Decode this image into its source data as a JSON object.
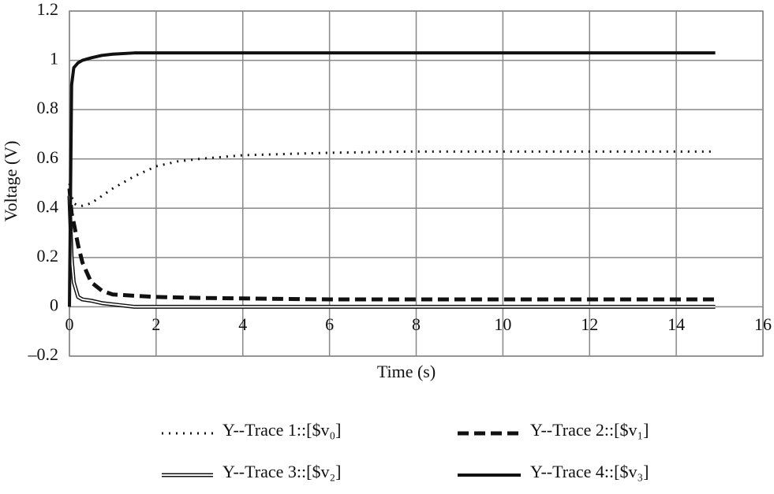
{
  "chart_data": {
    "type": "line",
    "x_label": "Time (s)",
    "y_label": "Voltage (V)",
    "x": [
      0,
      0.05,
      0.1,
      0.2,
      0.3,
      0.5,
      0.75,
      1,
      1.5,
      2,
      2.5,
      3,
      4,
      5,
      6,
      8,
      10,
      12,
      14,
      14.9
    ],
    "series": [
      {
        "name": "Y--Trace 1::[$v₀]",
        "color": "#111111",
        "style": "dotted",
        "values": [
          0.5,
          0.45,
          0.42,
          0.41,
          0.41,
          0.42,
          0.45,
          0.48,
          0.53,
          0.57,
          0.59,
          0.6,
          0.615,
          0.62,
          0.625,
          0.63,
          0.63,
          0.63,
          0.63,
          0.63
        ]
      },
      {
        "name": "Y--Trace 2::[$v₁]",
        "color": "#111111",
        "style": "dashed",
        "values": [
          0.48,
          0.38,
          0.34,
          0.25,
          0.18,
          0.1,
          0.065,
          0.05,
          0.045,
          0.04,
          0.038,
          0.036,
          0.034,
          0.032,
          0.03,
          0.03,
          0.03,
          0.03,
          0.03,
          0.03
        ]
      },
      {
        "name": "Y--Trace 3::[$v₂]",
        "color": "#111111",
        "style": "double",
        "values": [
          0.45,
          0.2,
          0.1,
          0.04,
          0.03,
          0.025,
          0.015,
          0.01,
          0,
          0,
          0,
          0,
          0,
          0,
          0,
          0,
          0,
          0,
          0,
          0
        ]
      },
      {
        "name": "Y--Trace 4::[$v₃]",
        "color": "#111111",
        "style": "solid",
        "values": [
          0,
          0.9,
          0.97,
          0.99,
          1.0,
          1.01,
          1.02,
          1.025,
          1.03,
          1.03,
          1.03,
          1.03,
          1.03,
          1.03,
          1.03,
          1.03,
          1.03,
          1.03,
          1.03,
          1.03
        ]
      }
    ],
    "xlim": [
      0,
      16
    ],
    "xticks": [
      0,
      2,
      4,
      6,
      8,
      10,
      12,
      14,
      16
    ],
    "ylim": [
      -0.2,
      1.2
    ],
    "yticks": [
      {
        "value": -0.2,
        "label": "–0.2"
      },
      0,
      0.2,
      0.4,
      0.6,
      0.8,
      1,
      1.2
    ],
    "grid": true
  }
}
